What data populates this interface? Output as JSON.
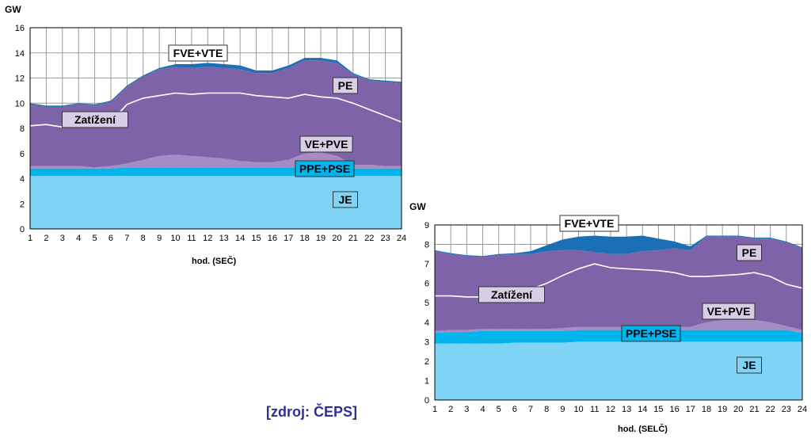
{
  "source": "[zdroj: ČEPS]",
  "colors": {
    "je": "#7fd4f5",
    "ppe_pse": "#00b4ec",
    "ve_pve": "#a48cc4",
    "pe": "#7f63a8",
    "fve_vte": "#1b6fb5",
    "load": "#ffffff",
    "grid": "#9a9a9a"
  },
  "chart_data": [
    {
      "type": "area",
      "stacked": true,
      "ylabel": "GW",
      "xlabel": "hod. (SEČ)",
      "x": [
        1,
        2,
        3,
        4,
        5,
        6,
        7,
        8,
        9,
        10,
        11,
        12,
        13,
        14,
        15,
        16,
        17,
        18,
        19,
        20,
        21,
        22,
        23,
        24
      ],
      "ylim": [
        0,
        16
      ],
      "yticks": [
        0,
        2,
        4,
        6,
        8,
        10,
        12,
        14,
        16
      ],
      "grid": true,
      "series": [
        {
          "name": "JE",
          "values": [
            4.2,
            4.2,
            4.2,
            4.2,
            4.2,
            4.2,
            4.2,
            4.2,
            4.2,
            4.2,
            4.2,
            4.2,
            4.2,
            4.2,
            4.2,
            4.2,
            4.2,
            4.2,
            4.2,
            4.2,
            4.2,
            4.2,
            4.2,
            4.2
          ]
        },
        {
          "name": "PPE+PSE",
          "values": [
            0.6,
            0.6,
            0.6,
            0.6,
            0.6,
            0.6,
            0.7,
            0.7,
            0.7,
            0.7,
            0.7,
            0.7,
            0.7,
            0.7,
            0.7,
            0.7,
            0.7,
            0.7,
            0.7,
            0.7,
            0.6,
            0.6,
            0.6,
            0.6
          ]
        },
        {
          "name": "VE+PVE",
          "values": [
            0.2,
            0.2,
            0.2,
            0.2,
            0.1,
            0.2,
            0.3,
            0.6,
            0.9,
            1.0,
            0.9,
            0.8,
            0.7,
            0.5,
            0.4,
            0.4,
            0.6,
            1.1,
            1.2,
            0.9,
            0.3,
            0.3,
            0.2,
            0.2
          ]
        },
        {
          "name": "PE",
          "values": [
            4.9,
            4.7,
            4.7,
            4.9,
            4.9,
            5.1,
            6.1,
            6.6,
            6.9,
            7.0,
            7.0,
            7.2,
            7.2,
            7.3,
            7.1,
            7.1,
            7.3,
            7.4,
            7.3,
            7.4,
            7.2,
            6.7,
            6.7,
            6.6
          ]
        },
        {
          "name": "FVE+VTE",
          "values": [
            0.1,
            0.1,
            0.1,
            0.1,
            0.1,
            0.1,
            0.1,
            0.1,
            0.1,
            0.2,
            0.3,
            0.3,
            0.3,
            0.3,
            0.2,
            0.2,
            0.2,
            0.2,
            0.2,
            0.2,
            0.1,
            0.1,
            0.1,
            0.1
          ]
        }
      ],
      "load": [
        8.2,
        8.3,
        8.1,
        8.2,
        8.2,
        8.5,
        9.9,
        10.4,
        10.6,
        10.8,
        10.7,
        10.8,
        10.8,
        10.8,
        10.6,
        10.5,
        10.4,
        10.7,
        10.5,
        10.4,
        10.0,
        9.5,
        9.0,
        8.5
      ],
      "labels": [
        {
          "text": "FVE+VTE",
          "series": "FVE+VTE"
        },
        {
          "text": "PE",
          "series": "PE"
        },
        {
          "text": "Zatížení",
          "series": "load"
        },
        {
          "text": "VE+PVE",
          "series": "VE+PVE"
        },
        {
          "text": "PPE+PSE",
          "series": "PPE+PSE"
        },
        {
          "text": "JE",
          "series": "JE"
        }
      ]
    },
    {
      "type": "area",
      "stacked": true,
      "ylabel": "GW",
      "xlabel": "hod. (SELČ)",
      "x": [
        1,
        2,
        3,
        4,
        5,
        6,
        7,
        8,
        9,
        10,
        11,
        12,
        13,
        14,
        15,
        16,
        17,
        18,
        19,
        20,
        21,
        22,
        23,
        24
      ],
      "ylim": [
        0,
        9
      ],
      "yticks": [
        0,
        1,
        2,
        3,
        4,
        5,
        6,
        7,
        8,
        9
      ],
      "grid": true,
      "series": [
        {
          "name": "JE",
          "values": [
            2.9,
            2.9,
            2.9,
            2.9,
            2.9,
            2.95,
            2.95,
            2.95,
            2.95,
            3.0,
            3.0,
            3.0,
            3.0,
            3.0,
            3.0,
            3.0,
            3.0,
            3.0,
            3.0,
            3.0,
            3.0,
            3.0,
            3.0,
            3.0
          ]
        },
        {
          "name": "PPE+PSE",
          "values": [
            0.55,
            0.6,
            0.6,
            0.65,
            0.65,
            0.6,
            0.6,
            0.6,
            0.6,
            0.6,
            0.6,
            0.6,
            0.6,
            0.6,
            0.6,
            0.6,
            0.6,
            0.6,
            0.6,
            0.6,
            0.6,
            0.6,
            0.6,
            0.45
          ]
        },
        {
          "name": "VE+PVE",
          "values": [
            0.1,
            0.1,
            0.1,
            0.1,
            0.1,
            0.1,
            0.1,
            0.1,
            0.15,
            0.15,
            0.15,
            0.15,
            0.15,
            0.15,
            0.15,
            0.15,
            0.15,
            0.4,
            0.5,
            0.5,
            0.5,
            0.4,
            0.2,
            0.15
          ]
        },
        {
          "name": "PE",
          "values": [
            4.1,
            3.9,
            3.8,
            3.7,
            3.8,
            3.85,
            3.85,
            4.0,
            4.0,
            3.95,
            3.85,
            3.75,
            3.75,
            3.9,
            3.95,
            4.05,
            3.95,
            4.4,
            4.3,
            4.3,
            4.2,
            4.3,
            4.3,
            4.2
          ]
        },
        {
          "name": "FVE+VTE",
          "values": [
            0.05,
            0.05,
            0.05,
            0.05,
            0.05,
            0.05,
            0.15,
            0.3,
            0.55,
            0.7,
            0.85,
            0.9,
            0.9,
            0.8,
            0.6,
            0.35,
            0.2,
            0.05,
            0.05,
            0.05,
            0.05,
            0.05,
            0.05,
            0.05
          ]
        }
      ],
      "load": [
        5.35,
        5.35,
        5.3,
        5.3,
        5.35,
        5.45,
        5.7,
        6.0,
        6.4,
        6.75,
        7.0,
        6.8,
        6.75,
        6.7,
        6.65,
        6.55,
        6.35,
        6.35,
        6.4,
        6.45,
        6.55,
        6.35,
        5.95,
        5.75
      ],
      "labels": [
        {
          "text": "FVE+VTE",
          "series": "FVE+VTE"
        },
        {
          "text": "PE",
          "series": "PE"
        },
        {
          "text": "Zatížení",
          "series": "load"
        },
        {
          "text": "VE+PVE",
          "series": "VE+PVE"
        },
        {
          "text": "PPE+PSE",
          "series": "PPE+PSE"
        },
        {
          "text": "JE",
          "series": "JE"
        }
      ]
    }
  ]
}
